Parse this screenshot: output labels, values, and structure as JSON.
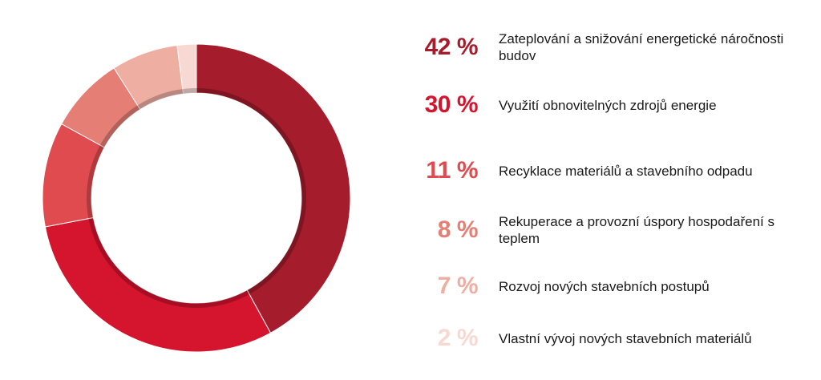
{
  "chart_data": {
    "type": "pie",
    "donut": true,
    "categories": [
      "Zateplování a snižování energetické náročnosti budov",
      "Využití obnovitelných zdrojů energie",
      "Recyklace materiálů a stavebního odpadu",
      "Rekuperace a provozní úspory hospodaření s teplem",
      "Rozvoj nových stavebních postupů",
      "Vlastní vývoj nových stavebních materiálů"
    ],
    "values": [
      42,
      30,
      11,
      8,
      7,
      2
    ],
    "value_labels": [
      "42 %",
      "30 %",
      "11 %",
      "8 %",
      "7 %",
      "2 %"
    ],
    "colors": [
      "#a51c2c",
      "#d5142e",
      "#df4b4f",
      "#e57e74",
      "#eeaea2",
      "#f8d8d2"
    ],
    "remainder_color": "#3b3b3f",
    "legend": "right"
  }
}
